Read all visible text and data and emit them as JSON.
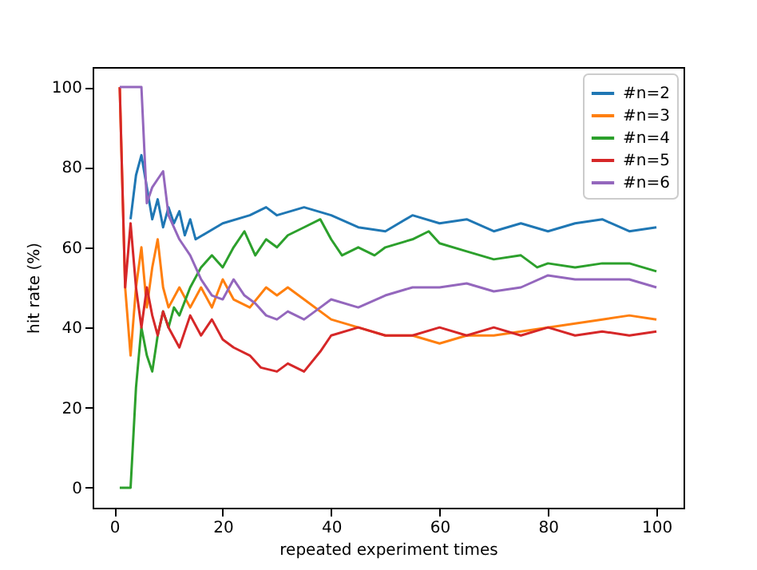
{
  "chart_data": {
    "type": "line",
    "xlabel": "repeated experiment times",
    "ylabel": "hit rate (%)",
    "xlim": [
      -4,
      105
    ],
    "ylim": [
      -5,
      105
    ],
    "xticks": [
      0,
      20,
      40,
      60,
      80,
      100
    ],
    "yticks": [
      0,
      20,
      40,
      60,
      80,
      100
    ],
    "legend": "top right",
    "grid": false,
    "marker": "none",
    "line_style": "solid",
    "series": [
      {
        "name": "#n=2",
        "color": "#1f77b4",
        "x": [
          3,
          4,
          5,
          6,
          7,
          8,
          9,
          10,
          11,
          12,
          13,
          14,
          15,
          20,
          25,
          28,
          30,
          35,
          40,
          45,
          50,
          55,
          60,
          65,
          70,
          75,
          80,
          85,
          90,
          95,
          100
        ],
        "values": [
          67,
          78,
          83,
          75,
          67,
          72,
          65,
          70,
          66,
          69,
          63,
          67,
          62,
          66,
          68,
          70,
          68,
          70,
          68,
          65,
          64,
          68,
          66,
          67,
          64,
          66,
          64,
          66,
          67,
          64,
          65
        ]
      },
      {
        "name": "#n=3",
        "color": "#ff7f0e",
        "x": [
          1,
          2,
          3,
          4,
          5,
          6,
          7,
          8,
          9,
          10,
          12,
          14,
          16,
          18,
          20,
          22,
          25,
          28,
          30,
          32,
          35,
          40,
          45,
          50,
          55,
          60,
          65,
          70,
          75,
          80,
          85,
          90,
          95,
          100
        ],
        "values": [
          100,
          50,
          33,
          50,
          60,
          45,
          55,
          62,
          50,
          45,
          50,
          45,
          50,
          45,
          52,
          47,
          45,
          50,
          48,
          50,
          47,
          42,
          40,
          38,
          38,
          36,
          38,
          38,
          39,
          40,
          41,
          42,
          43,
          42
        ]
      },
      {
        "name": "#n=4",
        "color": "#2ca02c",
        "x": [
          1,
          3,
          4,
          5,
          6,
          7,
          8,
          9,
          10,
          11,
          12,
          14,
          16,
          18,
          20,
          22,
          24,
          26,
          28,
          30,
          32,
          35,
          38,
          40,
          42,
          45,
          48,
          50,
          55,
          58,
          60,
          65,
          70,
          75,
          78,
          80,
          85,
          90,
          95,
          100
        ],
        "values": [
          0,
          0,
          25,
          40,
          33,
          29,
          38,
          44,
          40,
          45,
          43,
          50,
          55,
          58,
          55,
          60,
          64,
          58,
          62,
          60,
          63,
          65,
          67,
          62,
          58,
          60,
          58,
          60,
          62,
          64,
          61,
          59,
          57,
          58,
          55,
          56,
          55,
          56,
          56,
          54
        ]
      },
      {
        "name": "#n=5",
        "color": "#d62728",
        "x": [
          1,
          2,
          3,
          4,
          5,
          6,
          7,
          8,
          9,
          10,
          12,
          14,
          16,
          18,
          20,
          22,
          25,
          27,
          30,
          32,
          35,
          38,
          40,
          45,
          50,
          55,
          60,
          65,
          70,
          75,
          80,
          85,
          90,
          95,
          100
        ],
        "values": [
          100,
          50,
          66,
          50,
          40,
          50,
          43,
          38,
          44,
          40,
          35,
          43,
          38,
          42,
          37,
          35,
          33,
          30,
          29,
          31,
          29,
          34,
          38,
          40,
          38,
          38,
          40,
          38,
          40,
          38,
          40,
          38,
          39,
          38,
          39
        ]
      },
      {
        "name": "#n=6",
        "color": "#9467bd",
        "x": [
          1,
          5,
          6,
          7,
          8,
          9,
          10,
          12,
          14,
          16,
          18,
          20,
          22,
          24,
          26,
          28,
          30,
          32,
          35,
          38,
          40,
          45,
          50,
          55,
          60,
          65,
          70,
          75,
          80,
          85,
          90,
          95,
          100
        ],
        "values": [
          100,
          100,
          71,
          75,
          77,
          79,
          68,
          62,
          58,
          52,
          48,
          47,
          52,
          48,
          46,
          43,
          42,
          44,
          42,
          45,
          47,
          45,
          48,
          50,
          50,
          51,
          49,
          50,
          53,
          52,
          52,
          52,
          50
        ]
      }
    ]
  }
}
